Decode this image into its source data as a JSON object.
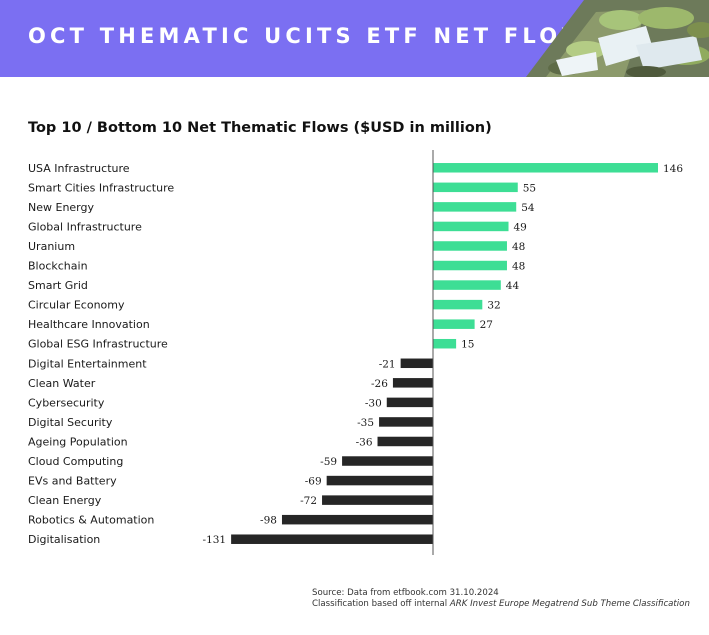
{
  "header": {
    "title": "OCT THEMATIC UCITS ETF NET FLOWS",
    "colors": {
      "banner": "#7b6ff2",
      "title": "#ffffff"
    },
    "photo": "waterfall-stream-photo"
  },
  "chart_data": {
    "type": "bar",
    "orientation": "horizontal",
    "title": "Top 10 / Bottom 10 Net Thematic Flows ($USD in million)",
    "categories": [
      "USA Infrastructure",
      "Smart Cities Infrastructure",
      "New Energy",
      "Global Infrastructure",
      "Uranium",
      "Blockchain",
      "Smart Grid",
      "Circular Economy",
      "Healthcare Innovation",
      "Global ESG Infrastructure",
      "Digital Entertainment",
      "Clean Water",
      "Cybersecurity",
      "Digital Security",
      "Ageing Population",
      "Cloud Computing",
      "EVs and Battery",
      "Clean Energy",
      "Robotics & Automation",
      "Digitalisation"
    ],
    "values": [
      146,
      55,
      54,
      49,
      48,
      48,
      44,
      32,
      27,
      15,
      -21,
      -26,
      -30,
      -35,
      -36,
      -59,
      -69,
      -72,
      -98,
      -131
    ],
    "value_labels": [
      "146",
      "55",
      "54",
      "49",
      "48",
      "48",
      "44",
      "32",
      "27",
      "15",
      "-21",
      "-26",
      "-30",
      "-35",
      "-36",
      "-59",
      "-69",
      "-72",
      "-98",
      "-131"
    ],
    "xlim": [
      -131,
      146
    ],
    "colors": {
      "positive": "#3dde95",
      "negative": "#262626",
      "axis": "#555555"
    },
    "grid": false,
    "legend": "none"
  },
  "footer": {
    "source_line": "Source: Data from etfbook.com 31.10.2024",
    "classification_prefix": "Classification based off internal ",
    "classification_name": "ARK Invest Europe Megatrend Sub Theme Classification"
  }
}
